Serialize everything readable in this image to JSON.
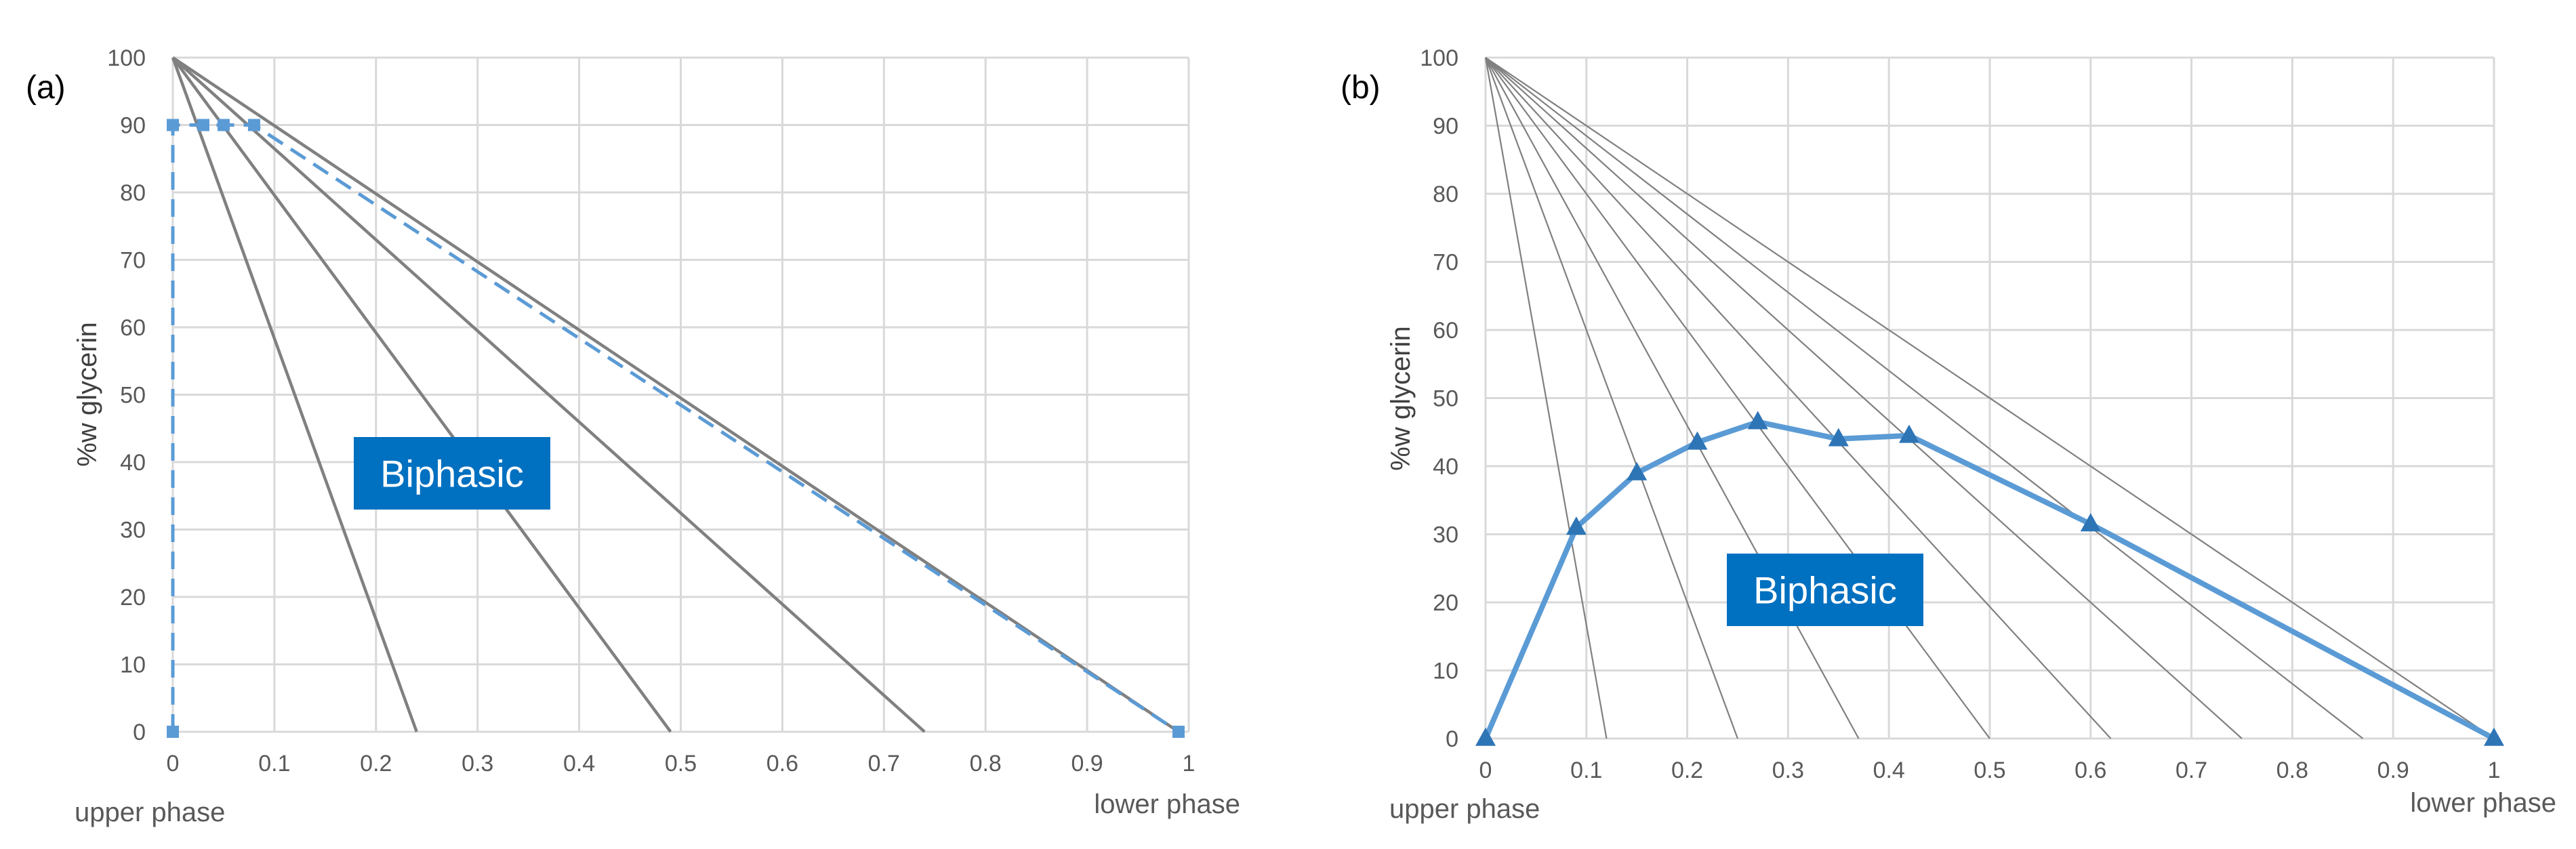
{
  "chart_data": [
    {
      "type": "line",
      "panel_label": "(a)",
      "ylabel": "%w glycerin",
      "xlabel_left": "upper phase",
      "xlabel_right": "lower phase",
      "xlim": [
        0,
        1
      ],
      "ylim": [
        0,
        100
      ],
      "grid": true,
      "x_ticks": [
        "0",
        "0.1",
        "0.2",
        "0.3",
        "0.4",
        "0.5",
        "0.6",
        "0.7",
        "0.8",
        "0.9",
        "1"
      ],
      "y_ticks": [
        "0",
        "10",
        "20",
        "30",
        "40",
        "50",
        "60",
        "70",
        "80",
        "90",
        "100"
      ],
      "region_label": "Biphasic",
      "tie_lines": [
        {
          "x": [
            0,
            0.24
          ],
          "y": [
            100,
            0
          ]
        },
        {
          "x": [
            0,
            0.49
          ],
          "y": [
            100,
            0
          ]
        },
        {
          "x": [
            0,
            0.74
          ],
          "y": [
            100,
            0
          ]
        },
        {
          "x": [
            0,
            0.99
          ],
          "y": [
            100,
            0
          ]
        }
      ],
      "series": [
        {
          "style": "dashed",
          "color": "#5B9BD5",
          "x": [
            0,
            0,
            0.03,
            0.05,
            0.08,
            0.99
          ],
          "y": [
            0,
            90,
            90,
            90,
            90,
            0
          ]
        }
      ]
    },
    {
      "type": "line",
      "panel_label": "(b)",
      "ylabel": "%w glycerin",
      "xlabel_left": "upper phase",
      "xlabel_right": "lower phase",
      "xlim": [
        0,
        1
      ],
      "ylim": [
        0,
        100
      ],
      "grid": true,
      "x_ticks": [
        "0",
        "0.1",
        "0.2",
        "0.3",
        "0.4",
        "0.5",
        "0.6",
        "0.7",
        "0.8",
        "0.9",
        "1"
      ],
      "y_ticks": [
        "0",
        "10",
        "20",
        "30",
        "40",
        "50",
        "60",
        "70",
        "80",
        "90",
        "100"
      ],
      "region_label": "Biphasic",
      "tie_lines": [
        {
          "x": [
            0,
            0.12
          ],
          "y": [
            100,
            0
          ]
        },
        {
          "x": [
            0,
            0.25
          ],
          "y": [
            100,
            0
          ]
        },
        {
          "x": [
            0,
            0.37
          ],
          "y": [
            100,
            0
          ]
        },
        {
          "x": [
            0,
            0.5
          ],
          "y": [
            100,
            0
          ]
        },
        {
          "x": [
            0,
            0.62
          ],
          "y": [
            100,
            0
          ]
        },
        {
          "x": [
            0,
            0.75
          ],
          "y": [
            100,
            0
          ]
        },
        {
          "x": [
            0,
            0.87
          ],
          "y": [
            100,
            0
          ]
        },
        {
          "x": [
            0,
            1.0
          ],
          "y": [
            100,
            0
          ]
        }
      ],
      "series": [
        {
          "style": "solid",
          "color": "#5B9BD5",
          "marker": "triangle",
          "marker_color": "#2E75B6",
          "x": [
            0,
            0.09,
            0.15,
            0.21,
            0.27,
            0.35,
            0.42,
            0.6,
            1.0
          ],
          "y": [
            0,
            31,
            39,
            43.5,
            46.5,
            44,
            44.5,
            31.5,
            0
          ]
        }
      ]
    }
  ]
}
